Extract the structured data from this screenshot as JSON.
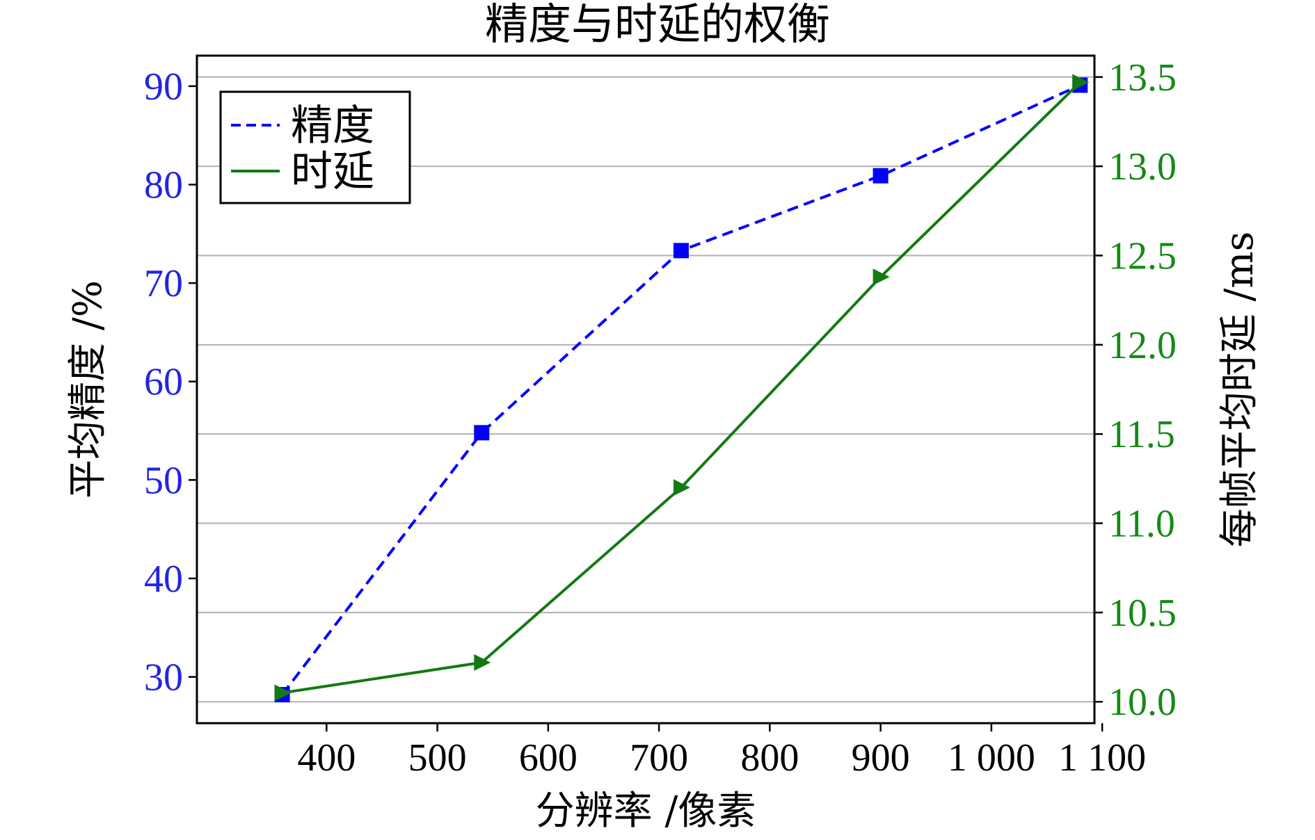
{
  "chart_data": {
    "type": "line",
    "title": "精度与时延的权衡",
    "xlabel": "分辨率 /像素",
    "ylabel_left": "平均精度 /%",
    "ylabel_right": "每帧平均时延 /ms",
    "x": [
      360,
      540,
      720,
      900,
      1080
    ],
    "x_tick_labels": [
      "400",
      "500",
      "600",
      "700",
      "800",
      "900",
      "1 000",
      "1 100"
    ],
    "x_ticks": [
      400,
      500,
      600,
      700,
      800,
      900,
      1000,
      1100
    ],
    "xlim": [
      283,
      1093
    ],
    "ylim_left": [
      25.3,
      93.1
    ],
    "y_ticks_left": [
      30,
      40,
      50,
      60,
      70,
      80,
      90
    ],
    "y_tick_labels_left": [
      "30",
      "40",
      "50",
      "60",
      "70",
      "80",
      "90"
    ],
    "ylim_right": [
      9.88,
      13.62
    ],
    "y_ticks_right": [
      10.0,
      10.5,
      11.0,
      11.5,
      12.0,
      12.5,
      13.0,
      13.5
    ],
    "y_tick_labels_right": [
      "10.0",
      "10.5",
      "11.0",
      "11.5",
      "12.0",
      "12.5",
      "13.0",
      "13.5"
    ],
    "grid": "horizontal",
    "legend_position": "top-left",
    "series": [
      {
        "name": "精度",
        "axis": "left",
        "values": [
          28.2,
          54.8,
          73.3,
          80.9,
          90.1
        ],
        "color": "#0000ff",
        "line_style": "dashed",
        "marker": "square"
      },
      {
        "name": "时延",
        "axis": "right",
        "values": [
          10.05,
          10.22,
          11.2,
          12.38,
          13.47
        ],
        "color": "#137a13",
        "line_style": "solid",
        "marker": "triangle-right"
      }
    ],
    "colors": {
      "left_axis": "#2323e6",
      "right_axis": "#158a15",
      "grid": "#b0b0b0"
    }
  }
}
